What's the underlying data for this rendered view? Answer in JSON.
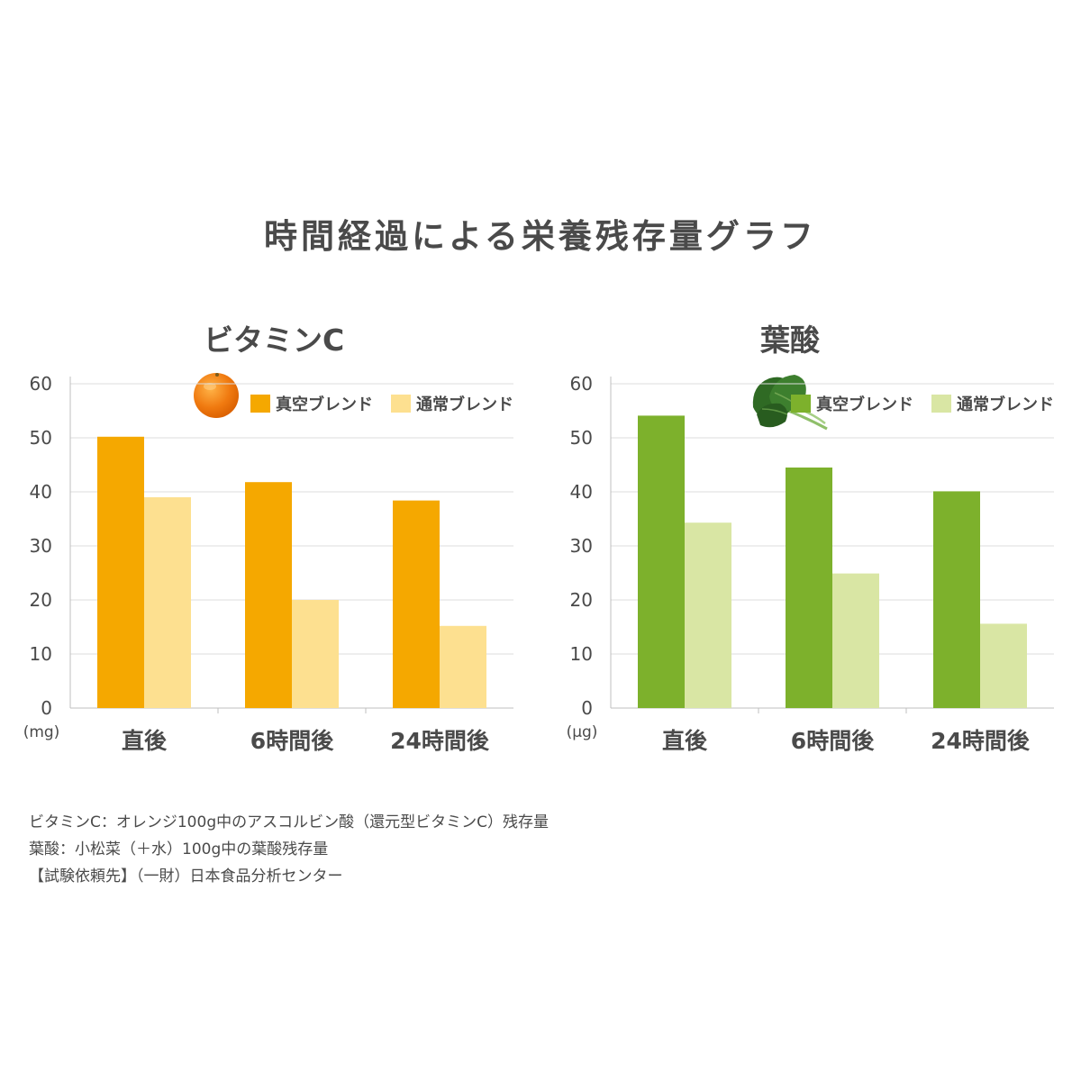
{
  "title": "時間経過による栄養残存量グラフ",
  "colors": {
    "grid": "#dcdcdc",
    "axis": "#bfbfbf",
    "text": "#4a4a4a"
  },
  "chart_data": [
    {
      "type": "bar",
      "title": "ビタミンC",
      "icon": "orange-icon",
      "ylabel": "(mg)",
      "ylim": [
        0,
        60
      ],
      "yticks": [
        0,
        10,
        20,
        30,
        40,
        50,
        60
      ],
      "categories": [
        "直後",
        "6時間後",
        "24時間後"
      ],
      "grid": true,
      "legend_position": "top-right",
      "series": [
        {
          "name": "真空ブレンド",
          "color": "#f5a800",
          "values": [
            50.2,
            41.8,
            38.4
          ]
        },
        {
          "name": "通常ブレンド",
          "color": "#fde090",
          "values": [
            39.0,
            20.0,
            15.2
          ]
        }
      ]
    },
    {
      "type": "bar",
      "title": "葉酸",
      "icon": "spinach-icon",
      "ylabel": "(μg)",
      "ylim": [
        0,
        60
      ],
      "yticks": [
        0,
        10,
        20,
        30,
        40,
        50,
        60
      ],
      "categories": [
        "直後",
        "6時間後",
        "24時間後"
      ],
      "grid": true,
      "legend_position": "top-right",
      "series": [
        {
          "name": "真空ブレンド",
          "color": "#7db12c",
          "values": [
            54.1,
            44.5,
            40.1
          ]
        },
        {
          "name": "通常ブレンド",
          "color": "#d9e6a4",
          "values": [
            34.3,
            24.9,
            15.6
          ]
        }
      ]
    }
  ],
  "notes": [
    "ビタミンC：オレンジ100g中のアスコルビン酸（還元型ビタミンC）残存量",
    "葉酸：小松菜（＋水）100g中の葉酸残存量",
    "【試験依頼先】（一財）日本食品分析センター"
  ]
}
